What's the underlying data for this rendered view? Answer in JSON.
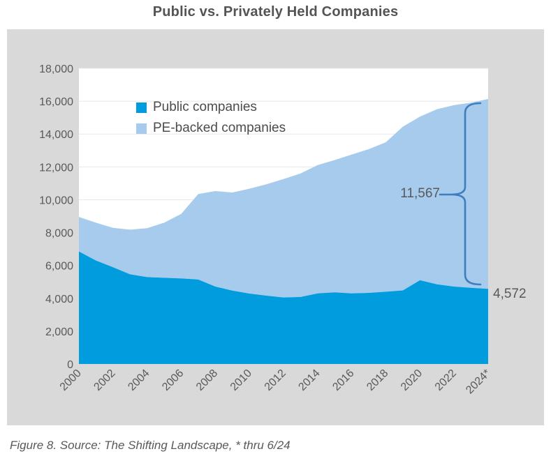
{
  "title": {
    "text": "Public vs. Privately Held Companies"
  },
  "caption": {
    "text": "Figure 8. Source: The Shifting Landscape, * thru 6/24"
  },
  "annotations": {
    "pe_gap": "11,567",
    "public_latest": "4,572"
  },
  "colors": {
    "public_area": "#009cde",
    "pe_area": "#a6cbec",
    "panel_background": "#d9d9d9",
    "plot_background": "#ffffff",
    "gridline": "#e8e8e8",
    "brace": "#3e7dbf",
    "axis_text": "#595959",
    "title_text": "#545454"
  },
  "chart_data": {
    "type": "area",
    "stacked": true,
    "title": "Public vs. Privately Held Companies",
    "xlabel": "",
    "ylabel": "",
    "ylim": [
      0,
      18000
    ],
    "grid": true,
    "legend_position": "top-left-inside",
    "x": [
      2000,
      2001,
      2002,
      2003,
      2004,
      2005,
      2006,
      2007,
      2008,
      2009,
      2010,
      2011,
      2012,
      2013,
      2014,
      2015,
      2016,
      2017,
      2018,
      2019,
      2020,
      2021,
      2022,
      2023,
      2024
    ],
    "x_tick_labels": [
      "2000",
      "2002",
      "2004",
      "2006",
      "2008",
      "2010",
      "2012",
      "2014",
      "2016",
      "2018",
      "2020",
      "2022",
      "2024*"
    ],
    "y_ticks": [
      0,
      2000,
      4000,
      6000,
      8000,
      10000,
      12000,
      14000,
      16000,
      18000
    ],
    "y_tick_labels": [
      "0",
      "2,000",
      "4,000",
      "6,000",
      "8,000",
      "10,000",
      "12,000",
      "14,000",
      "16,000",
      "18,000"
    ],
    "series": [
      {
        "name": "Public companies",
        "color": "#009cde",
        "values": [
          6850,
          6300,
          5890,
          5460,
          5290,
          5250,
          5210,
          5140,
          4710,
          4470,
          4290,
          4160,
          4050,
          4080,
          4300,
          4360,
          4300,
          4330,
          4400,
          4480,
          5100,
          4850,
          4710,
          4640,
          4572
        ]
      },
      {
        "name": "PE-backed companies",
        "color": "#a6cbec",
        "values": [
          2100,
          2300,
          2400,
          2720,
          2980,
          3350,
          3930,
          5210,
          5820,
          5970,
          6380,
          6780,
          7210,
          7520,
          7810,
          8060,
          8450,
          8750,
          9100,
          9970,
          9960,
          10660,
          11050,
          11270,
          11567
        ]
      }
    ],
    "annotations": [
      {
        "text": "11,567",
        "meaning": "PE-backed companies gap at 2024*"
      },
      {
        "text": "4,572",
        "meaning": "Public companies value at 2024*"
      }
    ]
  }
}
